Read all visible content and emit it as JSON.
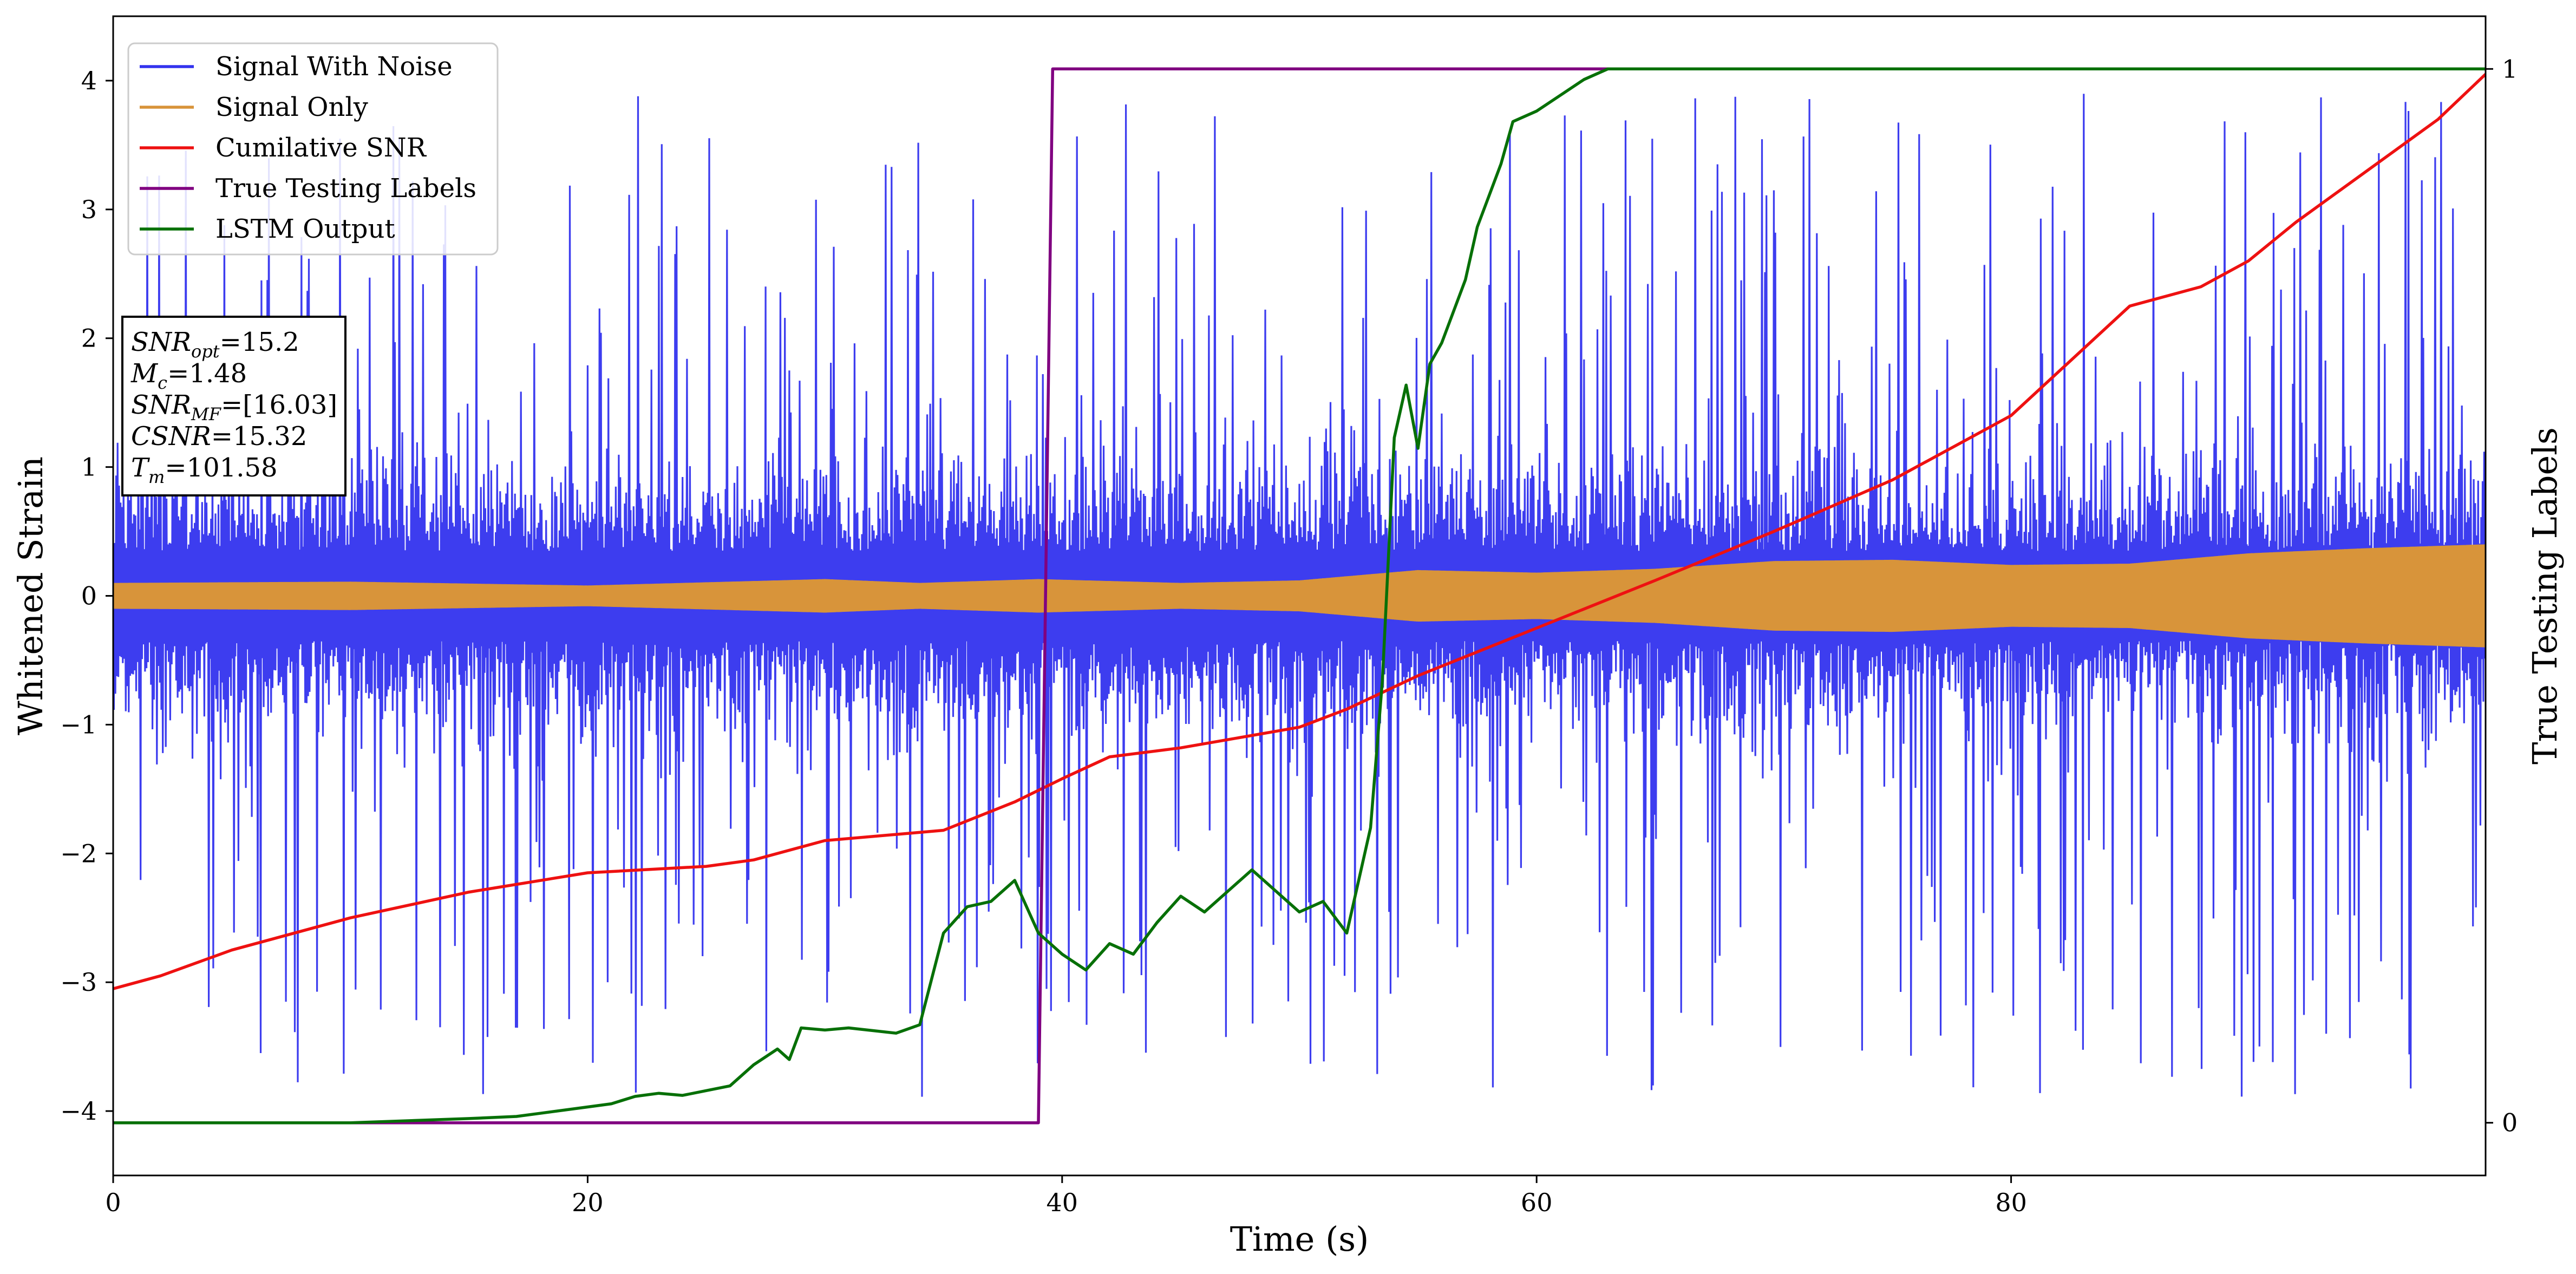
{
  "chart_data": {
    "type": "line",
    "title": "",
    "xlabel": "Time (s)",
    "ylabel": "Whitened Strain",
    "y2label": "True Testing Labels",
    "xlim": [
      0,
      100
    ],
    "ylim": [
      -4.5,
      4.5
    ],
    "y2lim": [
      -0.05,
      1.05
    ],
    "xticks": [
      0,
      20,
      40,
      60,
      80
    ],
    "yticks": [
      -4,
      -3,
      -2,
      -1,
      0,
      1,
      2,
      3,
      4
    ],
    "y2ticks": [
      0,
      1
    ],
    "legend_position": "top-left",
    "annotation_lines": [
      {
        "sym": "SNR",
        "sub": "opt",
        "rest": "=15.2"
      },
      {
        "sym": "M",
        "sub": "c",
        "rest": "=1.48"
      },
      {
        "sym": "SNR",
        "sub": "MF",
        "rest": "=[16.03]"
      },
      {
        "sym": "CSNR",
        "sub": "",
        "rest": "=15.32"
      },
      {
        "sym": "T",
        "sub": "m",
        "rest": "=101.58"
      }
    ],
    "series": [
      {
        "name": "Signal With Noise",
        "color": "#3333ee",
        "axis": "left",
        "kind": "noise",
        "core_amplitude": 1.0,
        "spike_max": 4.1,
        "note": "whitened noisy strain, dense oscillation with spikes to about +/-4"
      },
      {
        "name": "Signal Only",
        "color": "#d8943a",
        "axis": "left",
        "kind": "envelope",
        "envelope_x": [
          0,
          10,
          20,
          30,
          34,
          39,
          45,
          50,
          55,
          60,
          65,
          70,
          75,
          80,
          85,
          90,
          95,
          100
        ],
        "envelope_y": [
          0.1,
          0.11,
          0.08,
          0.13,
          0.1,
          0.13,
          0.1,
          0.12,
          0.2,
          0.18,
          0.21,
          0.27,
          0.28,
          0.24,
          0.25,
          0.33,
          0.37,
          0.4
        ]
      },
      {
        "name": "Cumilative SNR",
        "color": "#ee1111",
        "axis": "left",
        "kind": "line",
        "x": [
          0,
          2,
          5,
          10,
          15,
          20,
          25,
          27,
          30,
          35,
          38,
          40,
          42,
          45,
          50,
          52,
          55,
          60,
          65,
          70,
          75,
          80,
          85,
          88,
          90,
          92,
          95,
          98,
          100
        ],
        "y": [
          -3.05,
          -2.95,
          -2.75,
          -2.5,
          -2.3,
          -2.15,
          -2.1,
          -2.05,
          -1.9,
          -1.82,
          -1.6,
          -1.42,
          -1.25,
          -1.18,
          -1.02,
          -0.88,
          -0.62,
          -0.25,
          0.12,
          0.5,
          0.9,
          1.4,
          2.25,
          2.4,
          2.6,
          2.9,
          3.3,
          3.7,
          4.05
        ]
      },
      {
        "name": "True Testing Labels",
        "color": "#800080",
        "axis": "right",
        "kind": "line",
        "x": [
          0,
          39,
          39.6,
          100
        ],
        "y": [
          0,
          0,
          1,
          1
        ]
      },
      {
        "name": "LSTM Output",
        "color": "#077007",
        "axis": "right",
        "kind": "line",
        "x": [
          0,
          10,
          15,
          17,
          18,
          20,
          21,
          22,
          23,
          24,
          26,
          27,
          28,
          28.5,
          29,
          30,
          31,
          33,
          34,
          35,
          36,
          37,
          38,
          39,
          40,
          41,
          42,
          43,
          44,
          45,
          46,
          47,
          48,
          49,
          50,
          51,
          52,
          53,
          53.5,
          54,
          54.5,
          55,
          55.5,
          56,
          57,
          57.5,
          58,
          58.5,
          59,
          60,
          61,
          62,
          63,
          64,
          65,
          70,
          80,
          90,
          100
        ],
        "y": [
          0,
          0,
          0.004,
          0.006,
          0.009,
          0.015,
          0.018,
          0.025,
          0.028,
          0.026,
          0.035,
          0.055,
          0.07,
          0.06,
          0.09,
          0.088,
          0.09,
          0.085,
          0.093,
          0.18,
          0.205,
          0.21,
          0.23,
          0.18,
          0.16,
          0.145,
          0.17,
          0.16,
          0.19,
          0.215,
          0.2,
          0.22,
          0.24,
          0.22,
          0.2,
          0.21,
          0.18,
          0.28,
          0.42,
          0.65,
          0.7,
          0.64,
          0.72,
          0.74,
          0.8,
          0.85,
          0.88,
          0.91,
          0.95,
          0.96,
          0.975,
          0.99,
          1.0,
          1.0,
          1.0,
          1.0,
          1.0,
          1.0,
          1.0
        ]
      }
    ]
  }
}
